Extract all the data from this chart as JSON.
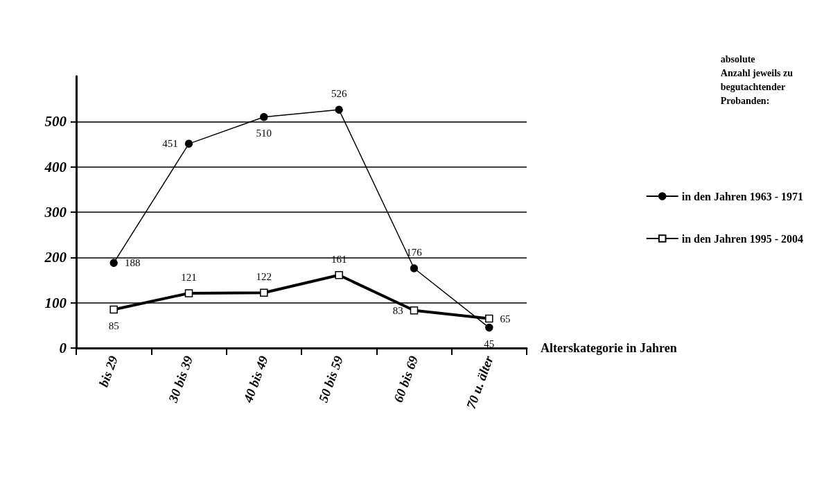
{
  "chart_data": {
    "type": "line",
    "xlabel": "Alterskategorie in Jahren",
    "legend_title": "absolute\nAnzahl jeweils zu\nbegutachtender\nProbanden:",
    "categories": [
      "bis 29",
      "30 bis 39",
      "40 bis 49",
      "50 bis 59",
      "60 bis 69",
      "70 u. älter"
    ],
    "series": [
      {
        "name": "in den Jahren 1963 - 1971",
        "color": "#000000",
        "marker": "circle",
        "values": [
          188,
          451,
          510,
          526,
          176,
          45
        ]
      },
      {
        "name": "in den Jahren 1995 - 2004",
        "color": "#000000",
        "marker": "square",
        "values": [
          85,
          121,
          122,
          161,
          83,
          65
        ]
      }
    ],
    "ylim": [
      0,
      600
    ],
    "yticks": [
      0,
      100,
      200,
      300,
      400,
      500
    ],
    "grid": "y",
    "legend": "right",
    "data_labels": true,
    "line_style": "solid"
  }
}
